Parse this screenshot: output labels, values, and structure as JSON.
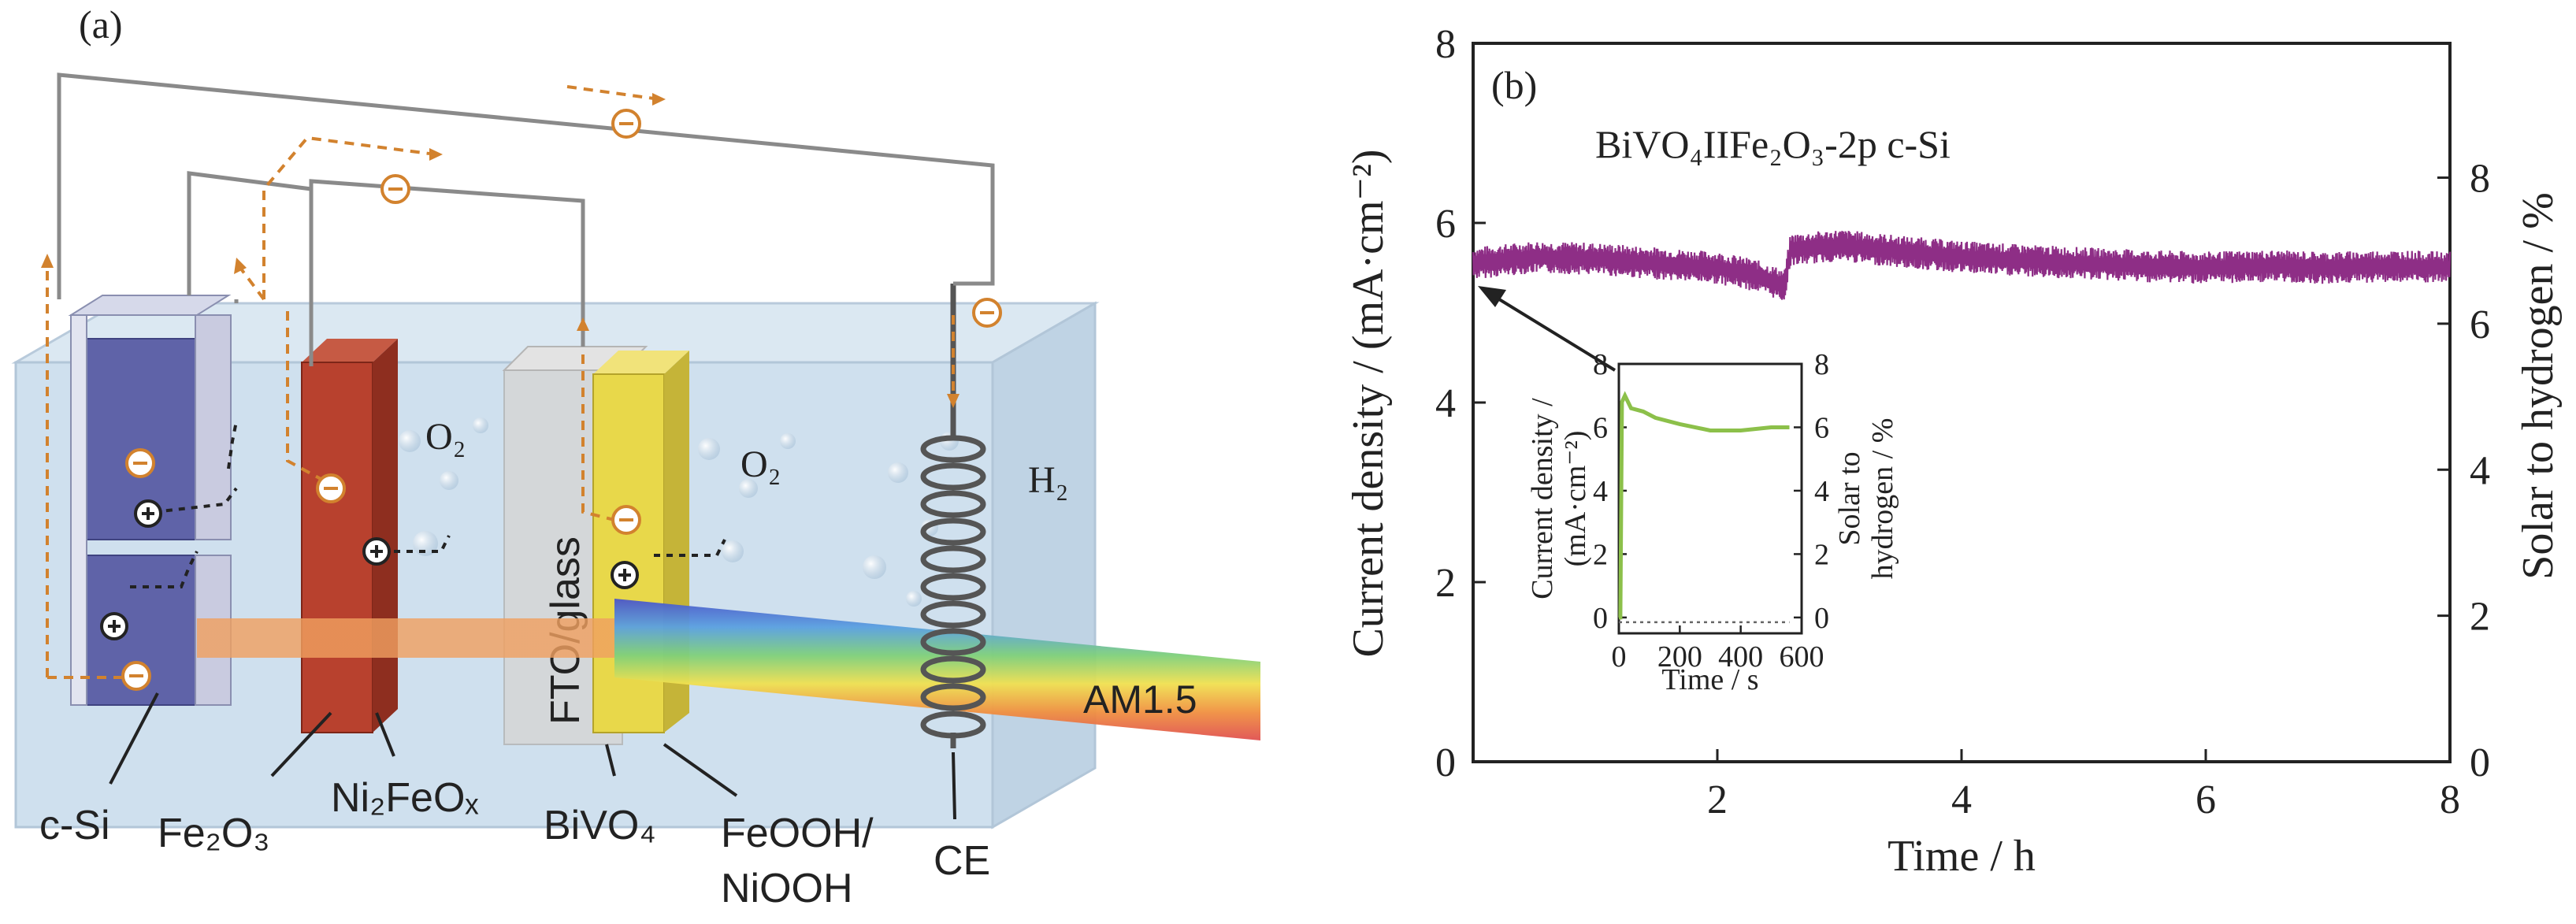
{
  "panel_a": {
    "label": "(a)",
    "o2_left": "O₂",
    "o2_right": "O₂",
    "h2": "H₂",
    "fto": "FTO/glass",
    "am": "AM1.5",
    "labels": {
      "csi": "c-Si",
      "fe2o3": "Fe₂O₃",
      "ni2feox": "Ni₂FeOₓ",
      "bivo4": "BiVO₄",
      "feooh": "FeOOH/",
      "niooh": "NiOOH",
      "ce": "CE"
    },
    "colors": {
      "tank": "#cfe0ee",
      "csi": "#5f63a8",
      "fe2o3": "#b8412e",
      "bivo4": "#e8d84a",
      "wire": "#8a8a8a",
      "electron_path": "#d2822e"
    }
  },
  "chart_data": [
    {
      "type": "line",
      "panel_label": "(b)",
      "annotation": "BiVO₄IIFe₂O₃-2p c-Si",
      "xlabel": "Time / h",
      "ylabel": "Current density / (mA·cm⁻²)",
      "y2label": "Solar to hydrogen / %",
      "xlim": [
        0,
        8
      ],
      "ylim": [
        0,
        8
      ],
      "y2lim": [
        0,
        9.84
      ],
      "x_ticks": [
        "2",
        "4",
        "6",
        "8"
      ],
      "y_ticks": [
        "0",
        "2",
        "4",
        "6",
        "8"
      ],
      "y2_ticks": [
        "0",
        "2",
        "4",
        "6",
        "8"
      ],
      "series": [
        {
          "color": "#8e2e86",
          "x": [
            0,
            0.5,
            1.0,
            1.5,
            2.0,
            2.3,
            2.55,
            2.6,
            3.0,
            3.5,
            4.0,
            4.5,
            5.0,
            5.5,
            6.0,
            6.5,
            7.0,
            7.5,
            8.0
          ],
          "y": [
            5.55,
            5.62,
            5.6,
            5.55,
            5.5,
            5.42,
            5.3,
            5.7,
            5.75,
            5.68,
            5.62,
            5.58,
            5.55,
            5.52,
            5.5,
            5.52,
            5.5,
            5.52,
            5.5
          ],
          "band": 0.18
        }
      ],
      "inset": {
        "type": "line",
        "xlabel": "Time / s",
        "ylabel_line1": "Current density /",
        "ylabel_line2": "(mA·cm⁻²)",
        "y2label_line1": "Solar to",
        "y2label_line2": "hydrogen / %",
        "xlim": [
          0,
          600
        ],
        "ylim": [
          -0.5,
          8
        ],
        "x_ticks": [
          "0",
          "200",
          "400",
          "600"
        ],
        "y_ticks": [
          "0",
          "2",
          "4",
          "6",
          "8"
        ],
        "y2_ticks": [
          "0",
          "2",
          "4",
          "6",
          "8"
        ],
        "series": [
          {
            "color": "#8cc04a",
            "x": [
              0,
              5,
              10,
              20,
              40,
              80,
              120,
              200,
              300,
              400,
              500,
              560
            ],
            "y": [
              0,
              0,
              6.8,
              7.0,
              6.6,
              6.5,
              6.3,
              6.1,
              5.9,
              5.9,
              6.0,
              6.0
            ]
          },
          {
            "color": "#666666",
            "dashed": true,
            "x": [
              0,
              560
            ],
            "y": [
              -0.15,
              -0.15
            ]
          }
        ]
      }
    }
  ]
}
